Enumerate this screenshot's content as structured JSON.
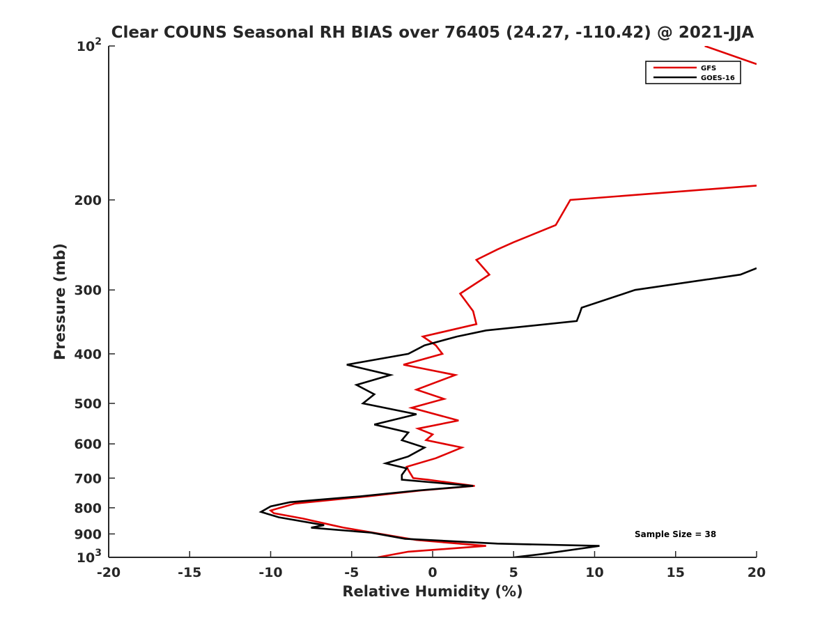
{
  "chart_data": {
    "type": "line",
    "title": "Clear COUNS Seasonal RH BIAS over 76405 (24.27, -110.42) @ 2021-JJA",
    "xlabel": "Relative Humidity (%)",
    "ylabel": "Pressure (mb)",
    "xlim": [
      -20,
      20
    ],
    "ylim": [
      100,
      1000
    ],
    "yscale": "log",
    "y_reversed": true,
    "x_ticks": [
      -20,
      -15,
      -10,
      -5,
      0,
      5,
      10,
      15,
      20
    ],
    "x_tick_labels": [
      "-20",
      "-15",
      "-10",
      "-5",
      "0",
      "5",
      "10",
      "15",
      "20"
    ],
    "y_ticks": [
      100,
      200,
      300,
      400,
      500,
      600,
      700,
      800,
      900,
      1000
    ],
    "y_tick_labels": [
      {
        "base": "10",
        "exp": "2"
      },
      {
        "base": "200",
        "exp": ""
      },
      {
        "base": "300",
        "exp": ""
      },
      {
        "base": "400",
        "exp": ""
      },
      {
        "base": "500",
        "exp": ""
      },
      {
        "base": "600",
        "exp": ""
      },
      {
        "base": "700",
        "exp": ""
      },
      {
        "base": "800",
        "exp": ""
      },
      {
        "base": "900",
        "exp": ""
      },
      {
        "base": "10",
        "exp": "3"
      }
    ],
    "grid": false,
    "legend_position": "top-right",
    "annotation": "Sample Size = 38",
    "series": [
      {
        "name": "GFS",
        "color": "#e00000",
        "points": [
          [
            -3.4,
            1000
          ],
          [
            -1.5,
            975
          ],
          [
            3.3,
            950
          ],
          [
            -1.0,
            925
          ],
          [
            -5.5,
            875
          ],
          [
            -6.2,
            865
          ],
          [
            -8.0,
            840
          ],
          [
            -9.8,
            820
          ],
          [
            -10.0,
            810
          ],
          [
            -8.5,
            785
          ],
          [
            -4.0,
            760
          ],
          [
            -0.7,
            740
          ],
          [
            2.6,
            725
          ],
          [
            -0.3,
            705
          ],
          [
            -1.2,
            700
          ],
          [
            -1.5,
            675
          ],
          [
            -1.6,
            665
          ],
          [
            0.2,
            640
          ],
          [
            1.8,
            610
          ],
          [
            -0.4,
            590
          ],
          [
            0.0,
            575
          ],
          [
            -0.9,
            560
          ],
          [
            1.6,
            540
          ],
          [
            -1.3,
            510
          ],
          [
            0.7,
            490
          ],
          [
            -1.0,
            470
          ],
          [
            1.4,
            440
          ],
          [
            -1.8,
            420
          ],
          [
            0.6,
            400
          ],
          [
            0.2,
            385
          ],
          [
            -0.6,
            370
          ],
          [
            2.7,
            350
          ],
          [
            2.5,
            330
          ],
          [
            1.7,
            305
          ],
          [
            3.5,
            280
          ],
          [
            2.7,
            262
          ],
          [
            4.0,
            250
          ],
          [
            5.0,
            242
          ],
          [
            7.6,
            224
          ],
          [
            8.5,
            200
          ],
          [
            20.0,
            187.5
          ]
        ]
      },
      {
        "name": "GFS",
        "color": "#e00000",
        "points": [
          [
            16.8,
            100
          ],
          [
            20.0,
            108.5
          ]
        ]
      },
      {
        "name": "GOES-16",
        "color": "#000000",
        "points": [
          [
            5.0,
            1000
          ],
          [
            6.8,
            985
          ],
          [
            10.3,
            950
          ],
          [
            4.0,
            940
          ],
          [
            -1.7,
            920
          ],
          [
            -3.8,
            895
          ],
          [
            -7.5,
            875
          ],
          [
            -6.7,
            865
          ],
          [
            -9.5,
            835
          ],
          [
            -10.6,
            815
          ],
          [
            -10.0,
            795
          ],
          [
            -8.8,
            780
          ],
          [
            -4.5,
            760
          ],
          [
            -0.9,
            740
          ],
          [
            2.5,
            725
          ],
          [
            -1.9,
            705
          ],
          [
            -1.9,
            690
          ],
          [
            -1.6,
            670
          ],
          [
            -2.9,
            655
          ],
          [
            -1.5,
            635
          ],
          [
            -0.5,
            610
          ],
          [
            -1.9,
            590
          ],
          [
            -1.5,
            570
          ],
          [
            -3.6,
            550
          ],
          [
            -1.0,
            525
          ],
          [
            -4.3,
            500
          ],
          [
            -3.6,
            480
          ],
          [
            -4.7,
            460
          ],
          [
            -2.6,
            440
          ],
          [
            -5.3,
            420
          ],
          [
            -1.5,
            400
          ],
          [
            -0.5,
            385
          ],
          [
            1.5,
            370
          ],
          [
            3.3,
            360
          ],
          [
            8.9,
            345
          ],
          [
            9.1,
            332
          ],
          [
            9.2,
            325
          ],
          [
            12.5,
            300
          ],
          [
            19.0,
            280
          ],
          [
            20.0,
            272
          ]
        ]
      }
    ]
  }
}
